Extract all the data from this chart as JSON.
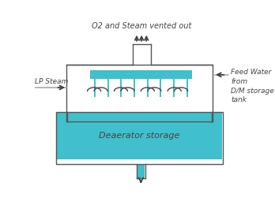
{
  "bg_color": "#ffffff",
  "teal": "#40bfcc",
  "line_color": "#555555",
  "gray_arrow": "#aaaaaa",
  "dark": "#444444",
  "title_text": "O2 and Steam vented out",
  "lp_steam_text": "LP Steam",
  "feed_water_text": "Feed Water\nfrom\nD/M storage\ntank",
  "deaerator_text": "Deaerator storage",
  "figw": 3.48,
  "figh": 2.7,
  "dpi": 100
}
